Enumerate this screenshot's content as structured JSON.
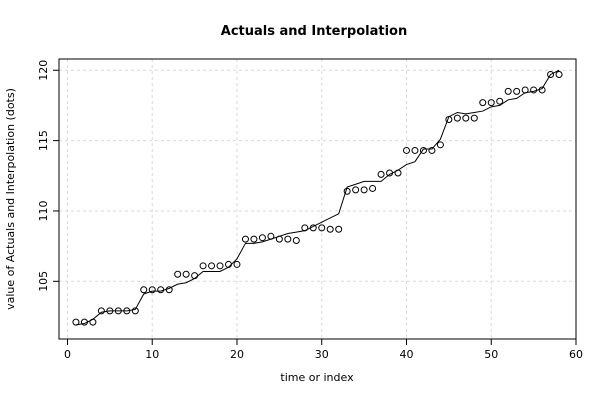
{
  "chart_data": {
    "type": "line",
    "title": "Actuals and Interpolation",
    "xlabel": "time or index",
    "ylabel": "value of Actuals and Interpolation (dots)",
    "xlim": [
      -1,
      60
    ],
    "ylim": [
      100.9,
      120.8
    ],
    "x_ticks": [
      0,
      10,
      20,
      30,
      40,
      50,
      60
    ],
    "y_ticks": [
      105,
      110,
      115,
      120
    ],
    "grid": true,
    "series": [
      {
        "role": "actuals",
        "marker": "open-circle",
        "x": [
          1,
          2,
          3,
          4,
          5,
          6,
          7,
          8,
          9,
          10,
          11,
          12,
          13,
          14,
          15,
          16,
          17,
          18,
          19,
          20,
          21,
          22,
          23,
          24,
          25,
          26,
          27,
          28,
          29,
          30,
          31,
          32,
          33,
          34,
          35,
          36,
          37,
          38,
          39,
          40,
          41,
          42,
          43,
          44,
          45,
          46,
          47,
          48,
          49,
          50,
          51,
          52,
          53,
          54,
          55,
          56,
          57,
          58
        ],
        "y": [
          102.1,
          102.1,
          102.1,
          102.9,
          102.9,
          102.9,
          102.9,
          102.9,
          104.4,
          104.4,
          104.4,
          104.4,
          105.5,
          105.5,
          105.4,
          106.1,
          106.1,
          106.1,
          106.2,
          106.2,
          108.0,
          108.0,
          108.1,
          108.2,
          108.0,
          108.0,
          107.9,
          108.8,
          108.8,
          108.8,
          108.7,
          108.7,
          111.4,
          111.5,
          111.5,
          111.6,
          112.6,
          112.7,
          112.7,
          114.3,
          114.3,
          114.3,
          114.3,
          114.7,
          116.5,
          116.6,
          116.6,
          116.6,
          117.7,
          117.7,
          117.8,
          118.5,
          118.5,
          118.6,
          118.6,
          118.6,
          119.7,
          119.7
        ]
      },
      {
        "role": "interpolation",
        "marker": "line",
        "x": [
          1,
          2,
          3,
          4,
          5,
          6,
          7,
          8,
          9,
          10,
          11,
          12,
          13,
          14,
          15,
          16,
          17,
          18,
          19,
          20,
          21,
          22,
          23,
          24,
          25,
          26,
          27,
          28,
          29,
          30,
          31,
          32,
          33,
          34,
          35,
          36,
          37,
          38,
          39,
          40,
          41,
          42,
          43,
          44,
          45,
          46,
          47,
          48,
          49,
          50,
          51,
          52,
          53,
          54,
          55,
          56,
          57,
          58
        ],
        "y": [
          101.9,
          102.0,
          102.3,
          102.8,
          102.9,
          102.9,
          102.9,
          103.0,
          104.1,
          104.3,
          104.3,
          104.5,
          104.8,
          104.9,
          105.2,
          105.7,
          105.7,
          105.7,
          106.0,
          106.6,
          107.7,
          107.7,
          107.8,
          108.0,
          108.2,
          108.4,
          108.5,
          108.6,
          108.9,
          109.2,
          109.5,
          109.8,
          111.7,
          111.9,
          112.1,
          112.1,
          112.1,
          112.6,
          112.9,
          113.3,
          113.5,
          114.4,
          114.4,
          115.1,
          116.7,
          117.0,
          116.9,
          117.0,
          117.1,
          117.4,
          117.5,
          117.9,
          118.0,
          118.4,
          118.5,
          118.7,
          119.7,
          120.0
        ]
      }
    ]
  }
}
